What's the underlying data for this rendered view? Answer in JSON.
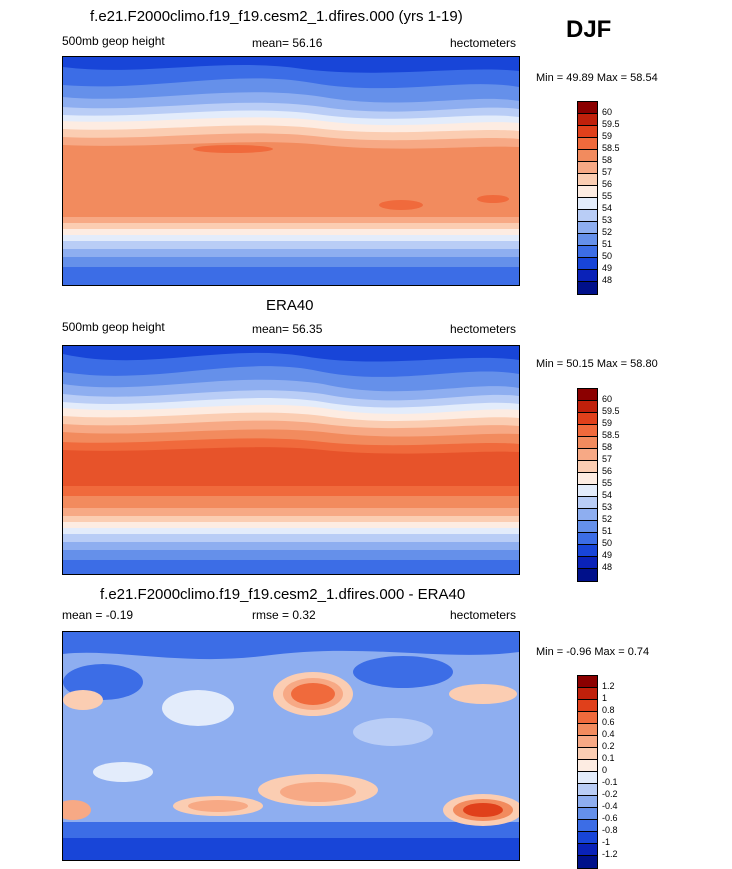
{
  "season": "DJF",
  "panels": [
    {
      "title": "f.e21.F2000climo.f19_f19.cesm2_1.dfires.000 (yrs 1-19)",
      "left_label": "500mb geop height",
      "center_label": "mean=  56.16",
      "right_label": "hectometers",
      "minmax": "Min =  49.89 Max =  58.54"
    },
    {
      "title": "ERA40",
      "left_label": "500mb geop height",
      "center_label": "mean=  56.35",
      "right_label": "hectometers",
      "minmax": "Min =  50.15 Max =  58.80"
    },
    {
      "title": "f.e21.F2000climo.f19_f19.cesm2_1.dfires.000 - ERA40",
      "left_label": "mean =  -0.19",
      "center_label": "rmse =   0.32",
      "right_label": "hectometers",
      "minmax": "Min =  -0.96 Max =   0.74"
    }
  ],
  "colorbar_abs": {
    "labels": [
      "60",
      "59.5",
      "59",
      "58.5",
      "58",
      "57",
      "56",
      "55",
      "54",
      "53",
      "52",
      "51",
      "50",
      "49",
      "48"
    ],
    "colors": [
      "#8b0000",
      "#c0200b",
      "#e0401b",
      "#f06a3c",
      "#f28b5e",
      "#f7a985",
      "#fbcdb2",
      "#fdece2",
      "#e3ecfb",
      "#b9cdf6",
      "#8eaef0",
      "#6590ea",
      "#3c6de6",
      "#1845d8",
      "#0a22b8",
      "#00108a"
    ]
  },
  "colorbar_diff": {
    "labels": [
      "1.2",
      "1",
      "0.8",
      "0.6",
      "0.4",
      "0.2",
      "0.1",
      "0",
      "-0.1",
      "-0.2",
      "-0.4",
      "-0.6",
      "-0.8",
      "-1",
      "-1.2"
    ],
    "colors": [
      "#8b0000",
      "#c0200b",
      "#e0401b",
      "#f06a3c",
      "#f28b5e",
      "#f7a985",
      "#fbcdb2",
      "#fdece2",
      "#e3ecfb",
      "#b9cdf6",
      "#8eaef0",
      "#6590ea",
      "#3c6de6",
      "#1845d8",
      "#0a22b8",
      "#00108a"
    ]
  }
}
